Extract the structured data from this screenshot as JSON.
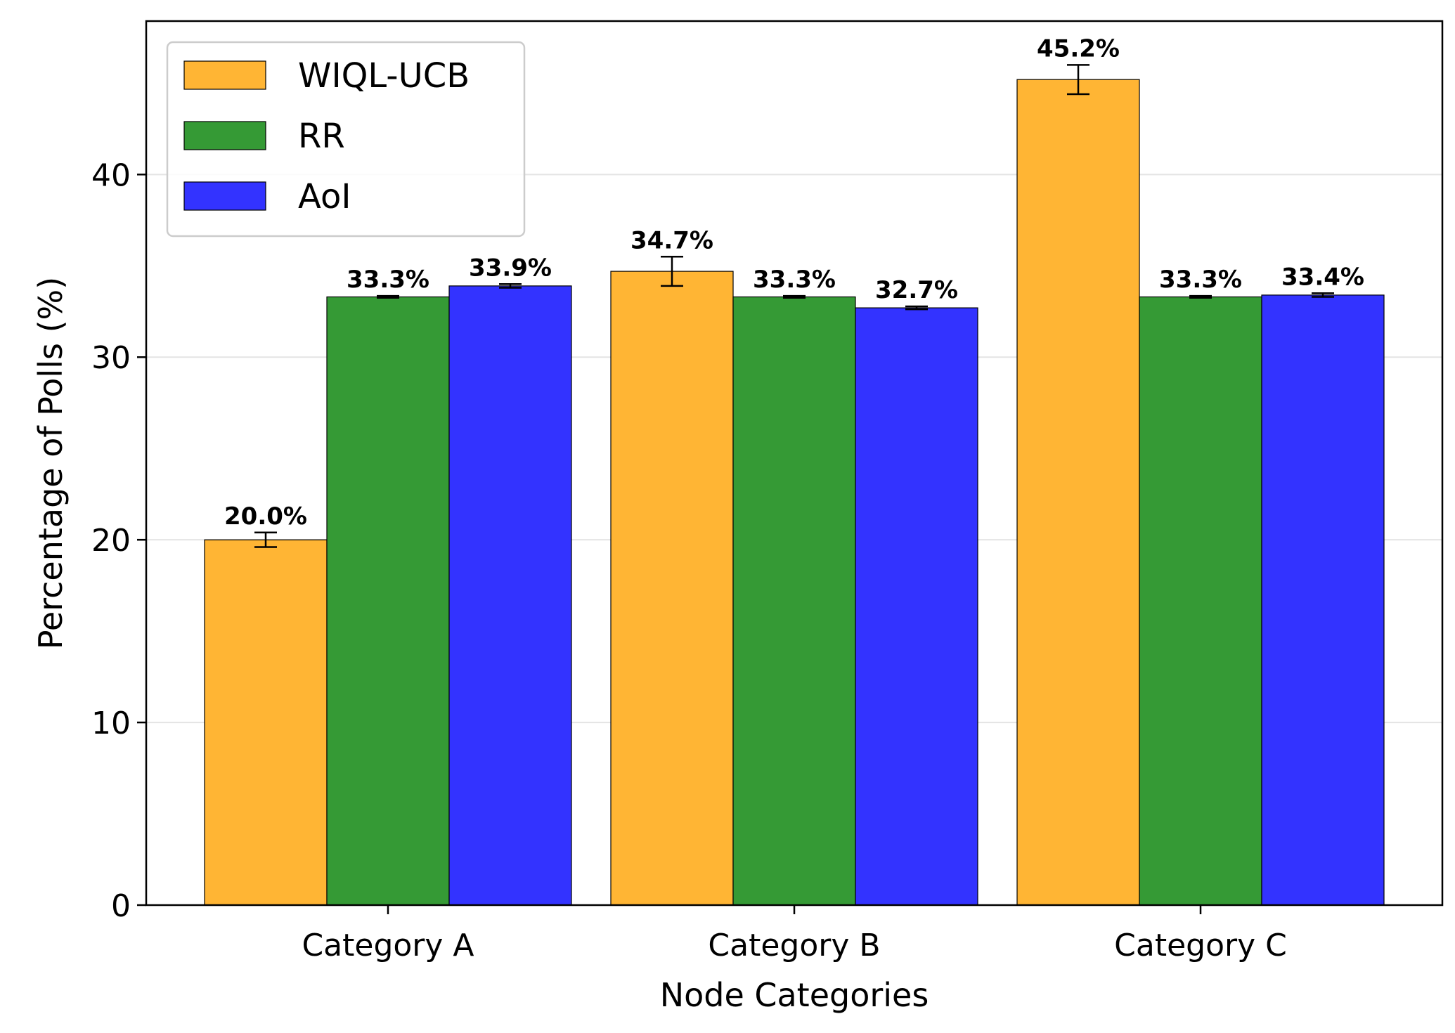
{
  "chart_data": {
    "type": "bar",
    "categories": [
      "Category A",
      "Category B",
      "Category C"
    ],
    "series": [
      {
        "name": "WIQL-UCB",
        "color": "#FFB534",
        "values": [
          20.0,
          34.7,
          45.2
        ],
        "errors": [
          0.4,
          0.8,
          0.8
        ],
        "labels": [
          "20.0%",
          "34.7%",
          "45.2%"
        ]
      },
      {
        "name": "RR",
        "color": "#359A35",
        "values": [
          33.3,
          33.3,
          33.3
        ],
        "errors": [
          0.05,
          0.05,
          0.05
        ],
        "labels": [
          "33.3%",
          "33.3%",
          "33.3%"
        ]
      },
      {
        "name": "AoI",
        "color": "#3333FF",
        "values": [
          33.9,
          32.7,
          33.4
        ],
        "errors": [
          0.1,
          0.08,
          0.1
        ],
        "labels": [
          "33.9%",
          "32.7%",
          "33.4%"
        ]
      }
    ],
    "xlabel": "Node Categories",
    "ylabel": "Percentage of Polls (%)",
    "ylim": [
      0,
      48.4
    ],
    "yticks": [
      0,
      10,
      20,
      30,
      40
    ],
    "grid": "horizontal",
    "legend_position": "top-left"
  }
}
